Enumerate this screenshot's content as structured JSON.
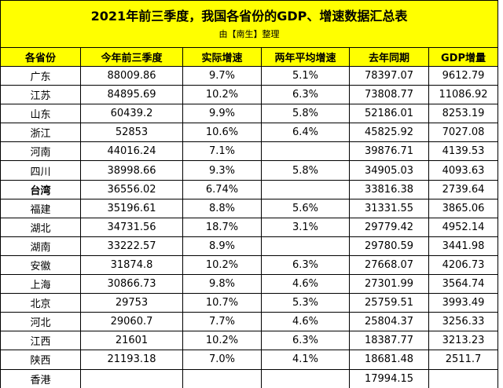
{
  "title": "2021年前三季度，我国各省份的GDP、增速数据汇总表",
  "subtitle": "由【南生】整理",
  "columns": [
    "各省份",
    "今年前三季度",
    "实际增速",
    "两年平均增速",
    "去年同期",
    "GDP增量"
  ],
  "rows": [
    {
      "province": "广东",
      "gdp": "88009.86",
      "growth": "9.7%",
      "avg2y": "5.1%",
      "last_year": "78397.07",
      "increase": "9612.79"
    },
    {
      "province": "江苏",
      "gdp": "84895.69",
      "growth": "10.2%",
      "avg2y": "6.3%",
      "last_year": "73808.77",
      "increase": "11086.92"
    },
    {
      "province": "山东",
      "gdp": "60439.2",
      "growth": "9.9%",
      "avg2y": "5.8%",
      "last_year": "52186.01",
      "increase": "8253.19"
    },
    {
      "province": "浙江",
      "gdp": "52853",
      "growth": "10.6%",
      "avg2y": "6.4%",
      "last_year": "45825.92",
      "increase": "7027.08"
    },
    {
      "province": "河南",
      "gdp": "44016.24",
      "growth": "7.1%",
      "avg2y": "",
      "last_year": "39876.71",
      "increase": "4139.53"
    },
    {
      "province": "四川",
      "gdp": "38998.66",
      "growth": "9.3%",
      "avg2y": "5.8%",
      "last_year": "34905.03",
      "increase": "4093.63"
    },
    {
      "province": "台湾",
      "gdp": "36556.02",
      "growth": "6.74%",
      "avg2y": "",
      "last_year": "33816.38",
      "increase": "2739.64",
      "bold": true
    },
    {
      "province": "福建",
      "gdp": "35196.61",
      "growth": "8.8%",
      "avg2y": "5.6%",
      "last_year": "31331.55",
      "increase": "3865.06"
    },
    {
      "province": "湖北",
      "gdp": "34731.56",
      "growth": "18.7%",
      "avg2y": "3.1%",
      "last_year": "29779.42",
      "increase": "4952.14"
    },
    {
      "province": "湖南",
      "gdp": "33222.57",
      "growth": "8.9%",
      "avg2y": "",
      "last_year": "29780.59",
      "increase": "3441.98"
    },
    {
      "province": "安徽",
      "gdp": "31874.8",
      "growth": "10.2%",
      "avg2y": "6.3%",
      "last_year": "27668.07",
      "increase": "4206.73"
    },
    {
      "province": "上海",
      "gdp": "30866.73",
      "growth": "9.8%",
      "avg2y": "4.6%",
      "last_year": "27301.99",
      "increase": "3564.74"
    },
    {
      "province": "北京",
      "gdp": "29753",
      "growth": "10.7%",
      "avg2y": "5.3%",
      "last_year": "25759.51",
      "increase": "3993.49"
    },
    {
      "province": "河北",
      "gdp": "29060.7",
      "growth": "7.7%",
      "avg2y": "4.6%",
      "last_year": "25804.37",
      "increase": "3256.33"
    },
    {
      "province": "江西",
      "gdp": "21601",
      "growth": "10.2%",
      "avg2y": "6.3%",
      "last_year": "18387.77",
      "increase": "3213.23"
    },
    {
      "province": "陕西",
      "gdp": "21193.18",
      "growth": "7.0%",
      "avg2y": "4.1%",
      "last_year": "18681.48",
      "increase": "2511.7"
    },
    {
      "province": "香港",
      "gdp": "",
      "growth": "",
      "avg2y": "",
      "last_year": "17994.15",
      "increase": ""
    }
  ]
}
